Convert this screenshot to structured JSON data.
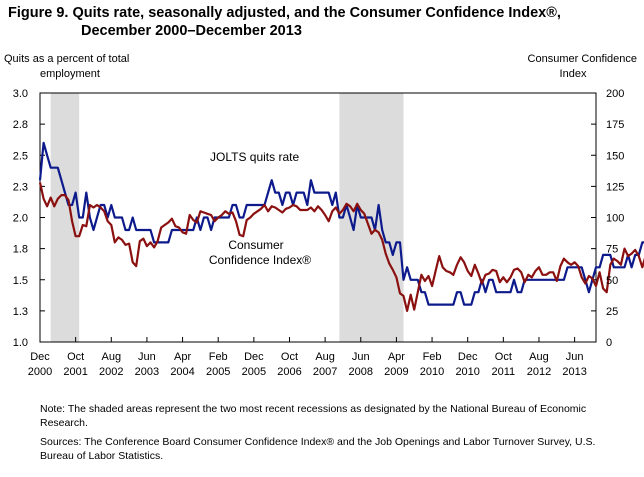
{
  "figure": {
    "title_line1": "Figure 9.  Quits rate, seasonally adjusted, and the Consumer Confidence Index®,",
    "title_line2": "December 2000–December 2013"
  },
  "notes": {
    "note": "Note: The shaded areas represent the two most recent recessions as designated by the National Bureau of Economic Research.",
    "sources": "Sources:  The Conference Board Consumer Confidence Index® and the Job Openings and Labor Turnover Survey, U.S. Bureau of Labor Statistics."
  },
  "chart_data": {
    "type": "line",
    "y_left_label": [
      "Quits as a percent of total",
      "employment"
    ],
    "y_right_label": [
      "Consumer Confidence",
      "Index"
    ],
    "y_left_range": [
      1.0,
      3.0
    ],
    "y_left_ticks": [
      "1.0",
      "1.3",
      "1.5",
      "1.8",
      "2.0",
      "2.3",
      "2.5",
      "2.8",
      "3.0"
    ],
    "y_right_range": [
      0,
      200
    ],
    "y_right_ticks": [
      "0",
      "25",
      "50",
      "75",
      "100",
      "125",
      "150",
      "175",
      "200"
    ],
    "x_start": "2000-12",
    "x_end": "2013-12",
    "x_tick_labels": [
      {
        "month": "Dec",
        "year": "2000"
      },
      {
        "month": "Oct",
        "year": "2001"
      },
      {
        "month": "Aug",
        "year": "2002"
      },
      {
        "month": "Jun",
        "year": "2003"
      },
      {
        "month": "Apr",
        "year": "2004"
      },
      {
        "month": "Feb",
        "year": "2005"
      },
      {
        "month": "Dec",
        "year": "2005"
      },
      {
        "month": "Oct",
        "year": "2006"
      },
      {
        "month": "Aug",
        "year": "2007"
      },
      {
        "month": "Jun",
        "year": "2008"
      },
      {
        "month": "Apr",
        "year": "2009"
      },
      {
        "month": "Feb",
        "year": "2010"
      },
      {
        "month": "Dec",
        "year": "2010"
      },
      {
        "month": "Oct",
        "year": "2011"
      },
      {
        "month": "Aug",
        "year": "2012"
      },
      {
        "month": "Jun",
        "year": "2013"
      }
    ],
    "recessions": [
      {
        "start": "2001-03",
        "end": "2001-11"
      },
      {
        "start": "2007-12",
        "end": "2009-06"
      }
    ],
    "annotations": [
      {
        "text": "JOLTS quits rate",
        "series": "JOLTS quits rate"
      },
      {
        "text": "Consumer",
        "series": "Consumer Confidence Index®"
      },
      {
        "text": "Confidence Index®",
        "series": "Consumer Confidence Index®"
      }
    ],
    "series": [
      {
        "name": "JOLTS quits rate",
        "axis": "left",
        "color": "#0d1a8c",
        "start": "2000-12",
        "values": [
          2.3,
          2.6,
          2.5,
          2.4,
          2.4,
          2.4,
          2.3,
          2.2,
          2.1,
          2.1,
          2.2,
          2.0,
          2.0,
          2.2,
          2.0,
          1.9,
          2.0,
          2.1,
          2.1,
          2.0,
          2.1,
          2.0,
          2.0,
          2.0,
          1.9,
          1.9,
          2.0,
          1.9,
          1.9,
          1.9,
          1.9,
          1.9,
          1.8,
          1.8,
          1.8,
          1.8,
          1.8,
          1.9,
          1.9,
          1.9,
          1.9,
          1.9,
          1.9,
          1.9,
          2.0,
          1.9,
          2.0,
          2.0,
          1.9,
          2.0,
          2.0,
          2.0,
          2.0,
          2.0,
          2.1,
          2.1,
          2.0,
          2.0,
          2.1,
          2.1,
          2.1,
          2.1,
          2.1,
          2.1,
          2.2,
          2.3,
          2.2,
          2.2,
          2.1,
          2.2,
          2.2,
          2.1,
          2.2,
          2.2,
          2.2,
          2.1,
          2.3,
          2.2,
          2.2,
          2.2,
          2.2,
          2.2,
          2.1,
          2.2,
          2.0,
          2.0,
          2.1,
          2.0,
          1.9,
          2.1,
          2.0,
          2.0,
          2.0,
          2.0,
          1.9,
          2.1,
          1.9,
          1.8,
          1.8,
          1.7,
          1.8,
          1.8,
          1.5,
          1.6,
          1.5,
          1.5,
          1.5,
          1.4,
          1.4,
          1.3,
          1.3,
          1.3,
          1.3,
          1.3,
          1.3,
          1.3,
          1.3,
          1.4,
          1.4,
          1.3,
          1.3,
          1.3,
          1.4,
          1.4,
          1.5,
          1.4,
          1.5,
          1.5,
          1.4,
          1.4,
          1.4,
          1.4,
          1.4,
          1.5,
          1.4,
          1.4,
          1.5,
          1.5,
          1.5,
          1.5,
          1.5,
          1.5,
          1.5,
          1.5,
          1.5,
          1.5,
          1.5,
          1.5,
          1.6,
          1.6,
          1.6,
          1.6,
          1.6,
          1.5,
          1.4,
          1.5,
          1.6,
          1.6,
          1.7,
          1.7,
          1.7,
          1.6,
          1.6,
          1.6,
          1.6,
          1.7,
          1.6,
          1.7,
          1.7,
          1.8,
          1.8,
          1.8,
          1.8
        ]
      },
      {
        "name": "Consumer Confidence Index®",
        "axis": "right",
        "color": "#8b1010",
        "start": "2000-12",
        "values": [
          128,
          115,
          109,
          116,
          109,
          115,
          118,
          118,
          114,
          97,
          85,
          85,
          94,
          93,
          110,
          108,
          110,
          108,
          105,
          97,
          94,
          80,
          84,
          82,
          78,
          79,
          64,
          61,
          81,
          83,
          77,
          80,
          76,
          81,
          92,
          94,
          96,
          99,
          93,
          92,
          88,
          87,
          102,
          98,
          96,
          105,
          104,
          103,
          102,
          97,
          100,
          102,
          105,
          103,
          104,
          97,
          86,
          85,
          98,
          100,
          103,
          105,
          107,
          110,
          105,
          109,
          108,
          106,
          104,
          107,
          108,
          110,
          109,
          106,
          106,
          106,
          108,
          105,
          109,
          106,
          102,
          97,
          105,
          108,
          103,
          106,
          111,
          109,
          105,
          111,
          106,
          103,
          95,
          87,
          90,
          88,
          82,
          71,
          63,
          58,
          52,
          39,
          37,
          25,
          38,
          26,
          40,
          54,
          49,
          53,
          45,
          57,
          69,
          60,
          57,
          56,
          54,
          62,
          68,
          64,
          57,
          53,
          62,
          55,
          47,
          54,
          55,
          58,
          57,
          48,
          52,
          48,
          52,
          58,
          59,
          56,
          48,
          54,
          52,
          57,
          60,
          54,
          54,
          56,
          56,
          49,
          61,
          67,
          64,
          62,
          64,
          61,
          52,
          47,
          53,
          51,
          45,
          56,
          43,
          40,
          62,
          67,
          65,
          62,
          75,
          69,
          71,
          74,
          69,
          60,
          70,
          73,
          73,
          70
        ]
      }
    ]
  }
}
